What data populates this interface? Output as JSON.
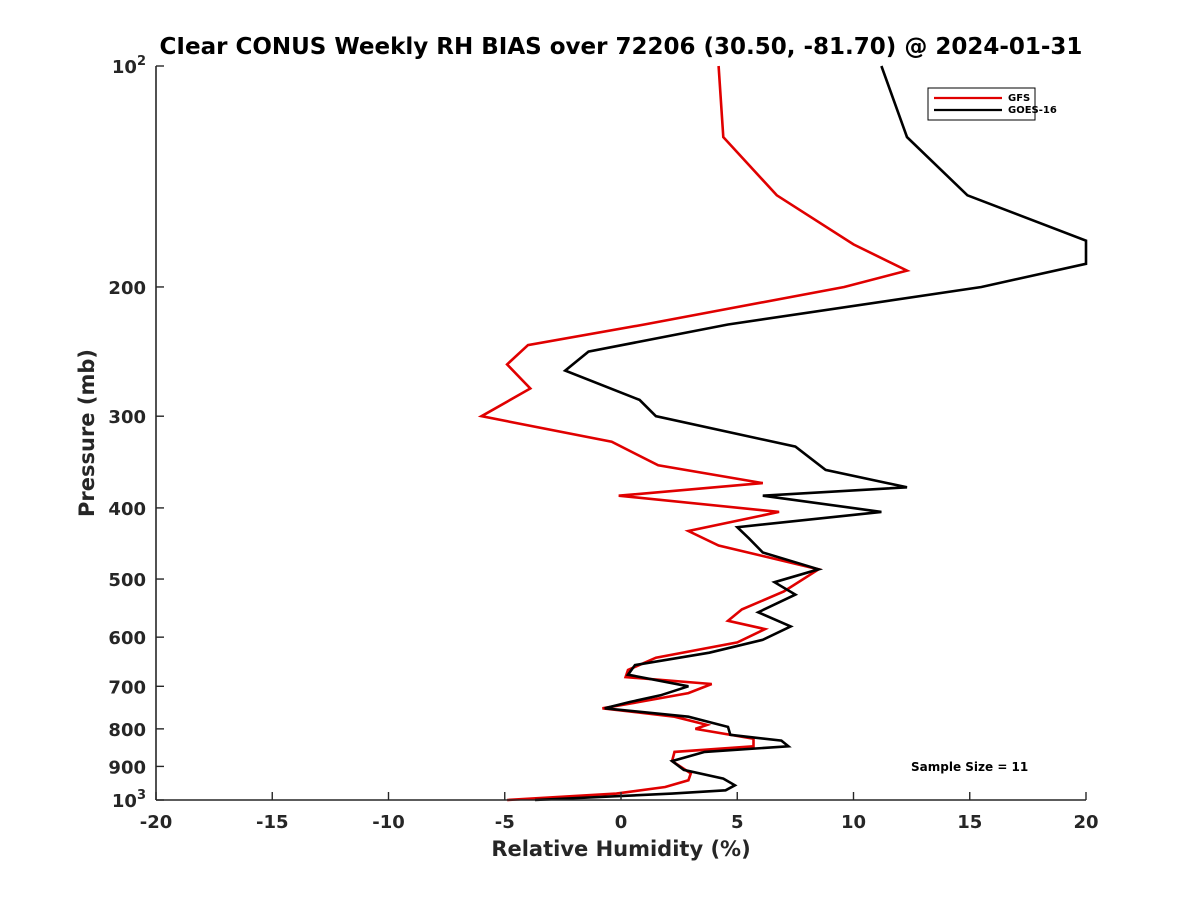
{
  "chart_data": {
    "type": "line",
    "title": "CIear CONUS Weekly RH BIAS over 72206 (30.50, -81.70) @ 2024-01-31",
    "xlabel": "Relative Humidity (%)",
    "ylabel": "Pressure (mb)",
    "xlim": [
      -20,
      20
    ],
    "ylim": [
      1000,
      100
    ],
    "y_scale": "log",
    "y_reversed": true,
    "grid": false,
    "legend_position": "top-right",
    "x_ticks": [
      "-20",
      "-15",
      "-10",
      "-5",
      "0",
      "5",
      "10",
      "15",
      "20"
    ],
    "y_ticks": [
      {
        "base": "10",
        "exp": "2",
        "value": 100
      },
      {
        "base": "200",
        "exp": "",
        "value": 200
      },
      {
        "base": "300",
        "exp": "",
        "value": 300
      },
      {
        "base": "400",
        "exp": "",
        "value": 400
      },
      {
        "base": "500",
        "exp": "",
        "value": 500
      },
      {
        "base": "600",
        "exp": "",
        "value": 600
      },
      {
        "base": "700",
        "exp": "",
        "value": 700
      },
      {
        "base": "800",
        "exp": "",
        "value": 800
      },
      {
        "base": "900",
        "exp": "",
        "value": 900
      },
      {
        "base": "10",
        "exp": "3",
        "value": 1000
      }
    ],
    "annotation": "Sample Size = 11",
    "series": [
      {
        "name": "GFS",
        "color": "#e00000",
        "points": [
          [
            4.2,
            100
          ],
          [
            4.4,
            125
          ],
          [
            6.7,
            150
          ],
          [
            10.0,
            175
          ],
          [
            12.3,
            190
          ],
          [
            9.6,
            200
          ],
          [
            1.0,
            225
          ],
          [
            -4.0,
            240
          ],
          [
            -4.9,
            255
          ],
          [
            -3.9,
            275
          ],
          [
            -6.0,
            300
          ],
          [
            -0.4,
            325
          ],
          [
            1.6,
            350
          ],
          [
            6.1,
            370
          ],
          [
            -0.1,
            385
          ],
          [
            6.8,
            405
          ],
          [
            2.9,
            430
          ],
          [
            4.2,
            450
          ],
          [
            8.5,
            485
          ],
          [
            7.0,
            520
          ],
          [
            5.2,
            550
          ],
          [
            4.6,
            570
          ],
          [
            6.2,
            585
          ],
          [
            5.0,
            610
          ],
          [
            1.5,
            640
          ],
          [
            0.3,
            665
          ],
          [
            0.2,
            680
          ],
          [
            3.9,
            695
          ],
          [
            2.9,
            715
          ],
          [
            0.8,
            735
          ],
          [
            -0.8,
            750
          ],
          [
            2.3,
            770
          ],
          [
            3.7,
            790
          ],
          [
            3.2,
            800
          ],
          [
            5.7,
            825
          ],
          [
            5.7,
            845
          ],
          [
            2.3,
            860
          ],
          [
            2.2,
            885
          ],
          [
            3.0,
            920
          ],
          [
            2.9,
            940
          ],
          [
            1.9,
            960
          ],
          [
            -0.2,
            980
          ],
          [
            -4.9,
            1000
          ]
        ]
      },
      {
        "name": "GOES-16",
        "color": "#000000",
        "points": [
          [
            11.2,
            100
          ],
          [
            12.3,
            125
          ],
          [
            14.9,
            150
          ],
          [
            20.0,
            173
          ],
          [
            20.0,
            186
          ],
          [
            15.5,
            200
          ],
          [
            4.6,
            225
          ],
          [
            -1.4,
            245
          ],
          [
            -2.4,
            260
          ],
          [
            0.8,
            285
          ],
          [
            1.5,
            300
          ],
          [
            7.5,
            330
          ],
          [
            8.8,
            355
          ],
          [
            12.3,
            375
          ],
          [
            6.1,
            385
          ],
          [
            11.2,
            405
          ],
          [
            5.0,
            425
          ],
          [
            5.5,
            440
          ],
          [
            6.1,
            460
          ],
          [
            8.5,
            485
          ],
          [
            6.6,
            505
          ],
          [
            7.5,
            525
          ],
          [
            5.9,
            555
          ],
          [
            7.3,
            580
          ],
          [
            6.1,
            605
          ],
          [
            3.8,
            630
          ],
          [
            0.6,
            655
          ],
          [
            0.3,
            675
          ],
          [
            2.9,
            700
          ],
          [
            1.7,
            720
          ],
          [
            0.4,
            735
          ],
          [
            -0.7,
            750
          ],
          [
            2.9,
            770
          ],
          [
            4.6,
            795
          ],
          [
            4.7,
            815
          ],
          [
            6.9,
            830
          ],
          [
            7.2,
            845
          ],
          [
            3.6,
            860
          ],
          [
            2.2,
            885
          ],
          [
            2.7,
            910
          ],
          [
            4.4,
            935
          ],
          [
            4.9,
            955
          ],
          [
            4.5,
            970
          ],
          [
            2.2,
            980
          ],
          [
            -3.7,
            1000
          ]
        ]
      }
    ]
  }
}
